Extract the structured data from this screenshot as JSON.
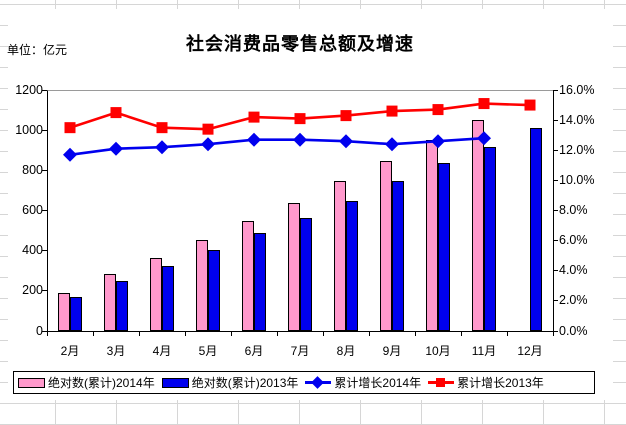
{
  "unit_label": "单位：亿元",
  "chart_data": {
    "type": "combo-bar-line",
    "title": "社会消费品零售总额及增速",
    "unit": "亿元",
    "categories": [
      "2月",
      "3月",
      "4月",
      "5月",
      "6月",
      "7月",
      "8月",
      "9月",
      "10月",
      "11月",
      "12月"
    ],
    "left_axis": {
      "min": 0,
      "max": 1200,
      "tick_labels": [
        "1200",
        "1000",
        "800",
        "600",
        "400",
        "200",
        "0"
      ]
    },
    "right_axis": {
      "min": 0,
      "max": 16,
      "tick_labels": [
        "16.0%",
        "14.0%",
        "12.0%",
        "10.0%",
        "8.0%",
        "6.0%",
        "4.0%",
        "2.0%",
        "0.0%"
      ]
    },
    "gridlines": "none",
    "legend_position": "bottom",
    "series": [
      {
        "id": "abs-2014",
        "name": "绝对数(累计)2014年",
        "type": "bar",
        "axis": "left",
        "color": "#FF99CC",
        "values": [
          190,
          285,
          365,
          455,
          550,
          638,
          745,
          848,
          950,
          1050,
          null
        ]
      },
      {
        "id": "abs-2013",
        "name": "绝对数(累计)2013年",
        "type": "bar",
        "axis": "left",
        "color": "#0000EE",
        "values": [
          170,
          250,
          325,
          405,
          487,
          565,
          648,
          745,
          838,
          917,
          1011
        ]
      },
      {
        "id": "growth-2014",
        "name": "累计增长2014年",
        "type": "line",
        "marker": "diamond",
        "axis": "right",
        "color": "#0000EE",
        "values": [
          11.7,
          12.1,
          12.2,
          12.4,
          12.7,
          12.7,
          12.6,
          12.4,
          12.6,
          12.8,
          null
        ]
      },
      {
        "id": "growth-2013",
        "name": "累计增长2013年",
        "type": "line",
        "marker": "square",
        "axis": "right",
        "color": "#FF0000",
        "values": [
          13.5,
          14.5,
          13.5,
          13.4,
          14.2,
          14.1,
          14.3,
          14.6,
          14.7,
          15.1,
          15.0
        ]
      }
    ]
  }
}
